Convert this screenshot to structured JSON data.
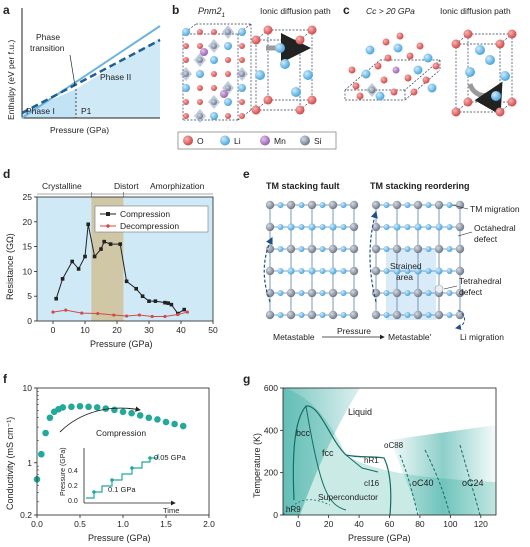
{
  "colors": {
    "light_blue": "#cfe9f7",
    "dark_blue": "#1f6ca8",
    "teal": "#23a99a",
    "teal_light": "#cbece8",
    "khaki": "#cfc7a6",
    "red": "#d24b4b",
    "li_blue": "#5fb5e6",
    "mn_purple": "#a06bb4",
    "si_grey": "#7c8796",
    "black": "#222222"
  },
  "panel_a": {
    "letter": "a",
    "ylabel": "Enthalpy (eV per f.u.)",
    "xlabel": "Pressure (GPa)",
    "phase_transition": [
      "Phase",
      "transition"
    ],
    "phase1": "Phase I",
    "phase2": "Phase II",
    "p1": "P1"
  },
  "panel_b": {
    "letter": "b",
    "space_group": "Pnm2",
    "space_group_sub": "1",
    "path_label": "Ionic diffusion path"
  },
  "panel_c": {
    "letter": "c",
    "space_group": "Cc > 20 GPa",
    "path_label": "Ionic diffusion path"
  },
  "legend_atoms": [
    {
      "symbol": "O",
      "icon": "red-atom"
    },
    {
      "symbol": "Li",
      "icon": "blue-atom"
    },
    {
      "symbol": "Mn",
      "icon": "purple-atom"
    },
    {
      "symbol": "Si",
      "icon": "grey-atom"
    }
  ],
  "panel_d": {
    "letter": "d",
    "regions": [
      "Crystalline",
      "Distort",
      "Amorphization"
    ],
    "chart_data": {
      "type": "line",
      "xlabel": "Pressure (GPa)",
      "ylabel": "Resistance (GΩ)",
      "xlim": [
        -5,
        50
      ],
      "ylim": [
        0,
        25
      ],
      "xticks": [
        "0",
        "10",
        "20",
        "30",
        "40",
        "50"
      ],
      "yticks": [
        "0",
        "5",
        "10",
        "15",
        "20",
        "25"
      ],
      "series": [
        {
          "name": "Compression",
          "x": [
            1,
            3,
            6,
            8,
            10,
            11,
            13,
            15,
            16,
            18,
            21,
            23,
            26,
            28,
            30,
            32,
            35,
            36,
            37,
            39,
            41
          ],
          "y": [
            4.5,
            8.5,
            12,
            10.5,
            13,
            19.5,
            13,
            14.5,
            16,
            15.5,
            15.5,
            8,
            6.5,
            5,
            4,
            4,
            3.7,
            3.6,
            3.3,
            1.5,
            2.3
          ]
        },
        {
          "name": "Decompression",
          "x": [
            0,
            4,
            9,
            14,
            19,
            23,
            27,
            31,
            35,
            39,
            42
          ],
          "y": [
            1.8,
            2.2,
            1.6,
            1.5,
            1.2,
            1.0,
            1.2,
            0.9,
            0.9,
            1.3,
            1.8
          ]
        }
      ]
    }
  },
  "panel_e": {
    "letter": "e",
    "title_left": "TM stacking fault",
    "title_right": "TM stacking reordering",
    "tm_migration": "TM migration",
    "octahedral": [
      "Octahedral",
      "defect"
    ],
    "tetrahedral": [
      "Tetrahedral",
      "defect"
    ],
    "li_migration": "Li migration",
    "strained": [
      "Strained",
      "area"
    ],
    "metastable": "Metastable",
    "pressure": "Pressure",
    "metastable2": "Metastable'"
  },
  "panel_f": {
    "letter": "f",
    "chart_data": {
      "type": "scatter",
      "xlabel": "Pressure (GPa)",
      "ylabel": "Conductivity (mS cm⁻¹)",
      "log_y": true,
      "xlim": [
        0,
        2.0
      ],
      "xticks": [
        "0.0",
        "0.5",
        "1.0",
        "1.5",
        "2.0"
      ],
      "yticks": [
        "0.2",
        "1",
        "10"
      ],
      "series": [
        {
          "name": "Compression",
          "x": [
            0.0,
            0.05,
            0.1,
            0.15,
            0.2,
            0.25,
            0.3,
            0.4,
            0.5,
            0.6,
            0.7,
            0.8,
            0.9,
            1.0,
            1.1,
            1.2,
            1.3,
            1.4,
            1.5,
            1.6,
            1.7
          ],
          "y": [
            0.6,
            1.3,
            2.5,
            4.0,
            4.8,
            5.2,
            5.5,
            5.6,
            5.7,
            5.6,
            5.5,
            5.3,
            5.1,
            4.8,
            4.6,
            4.3,
            4.0,
            3.8,
            3.5,
            3.3,
            3.1
          ]
        }
      ],
      "inset": {
        "ylabel": "Pressure (GPa)",
        "xlabel": "Time",
        "yticks": [
          "0.0",
          "0.2",
          "0.4"
        ],
        "labels": [
          "0.1 GPa",
          "0.05 GPa"
        ]
      }
    }
  },
  "panel_g": {
    "letter": "g",
    "chart_data": {
      "type": "area",
      "xlabel": "Pressure (GPa)",
      "ylabel": "Temperature (K)",
      "xlim": [
        -10,
        130
      ],
      "ylim": [
        0,
        600
      ],
      "xticks": [
        "0",
        "20",
        "40",
        "60",
        "80",
        "100",
        "120"
      ],
      "yticks": [
        "0",
        "200",
        "400",
        "600"
      ],
      "regions": [
        "Liquid",
        "bcc",
        "fcc",
        "hR1",
        "oC88",
        "cI16",
        "oC40",
        "oC24",
        "hR9",
        "Superconductor"
      ]
    }
  }
}
